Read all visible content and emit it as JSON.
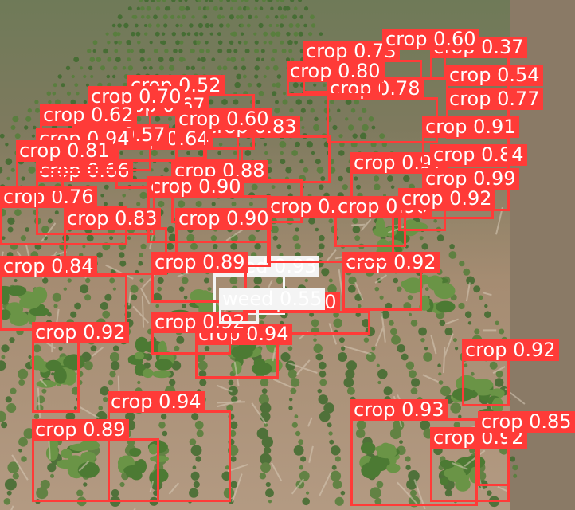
{
  "image": {
    "subject": "aerial field photo with crop and weed detection boxes",
    "colors": {
      "crop": "#ff3b38",
      "weed": "#f4f4f4",
      "label_text": "#ffffff"
    }
  },
  "detections": [
    {
      "label": "crop",
      "score": "0.73"
    },
    {
      "label": "crop",
      "score": "0.78"
    },
    {
      "label": "crop",
      "score": "0.52"
    },
    {
      "label": "crop",
      "score": "0.67"
    },
    {
      "label": "crop",
      "score": "0.83"
    },
    {
      "label": "crop",
      "score": "0.64"
    },
    {
      "label": "crop",
      "score": "0.88"
    },
    {
      "label": "crop",
      "score": "0.97"
    },
    {
      "label": "crop",
      "score": "0.76"
    },
    {
      "label": "crop",
      "score": "0.90"
    },
    {
      "label": "crop",
      "score": "0.84"
    },
    {
      "label": "crop",
      "score": "0.92"
    },
    {
      "label": "weed",
      "score": "0.93"
    },
    {
      "label": "crop",
      "score": "0.90"
    },
    {
      "label": "crop",
      "score": "0.94"
    },
    {
      "label": "crop",
      "score": "0.94"
    },
    {
      "label": "crop",
      "score": "0.89"
    },
    {
      "label": "crop",
      "score": "0.93"
    },
    {
      "label": "crop",
      "score": "0.92"
    },
    {
      "label": "crop",
      "score": "0.90"
    },
    {
      "label": "crop",
      "score": "0.90"
    },
    {
      "label": "crop",
      "score": "0.60"
    },
    {
      "label": "crop",
      "score": "0.90"
    },
    {
      "label": "crop",
      "score": "0.84"
    },
    {
      "label": "crop",
      "score": "0.66"
    },
    {
      "label": "crop",
      "score": "0.80"
    },
    {
      "label": "crop",
      "score": "0.37"
    },
    {
      "label": "crop",
      "score": "0.54"
    },
    {
      "label": "crop",
      "score": "0.70"
    },
    {
      "label": "crop",
      "score": "0.60"
    },
    {
      "label": "crop",
      "score": "0.99"
    },
    {
      "label": "crop",
      "score": "0.62"
    },
    {
      "label": "crop",
      "score": "0.83"
    },
    {
      "label": "crop",
      "score": "0.92"
    },
    {
      "label": "crop",
      "score": "0.92"
    },
    {
      "label": "crop",
      "score": "0.77"
    },
    {
      "label": "crop",
      "score": "0.57"
    },
    {
      "label": "crop",
      "score": "0.89"
    },
    {
      "label": "crop",
      "score": "0.94"
    },
    {
      "label": "crop",
      "score": "0.91"
    },
    {
      "label": "crop",
      "score": "0.92"
    },
    {
      "label": "weed",
      "score": "0.55"
    },
    {
      "label": "crop",
      "score": "0.92"
    },
    {
      "label": "crop",
      "score": "0.85"
    },
    {
      "label": "crop",
      "score": "0.81"
    }
  ]
}
